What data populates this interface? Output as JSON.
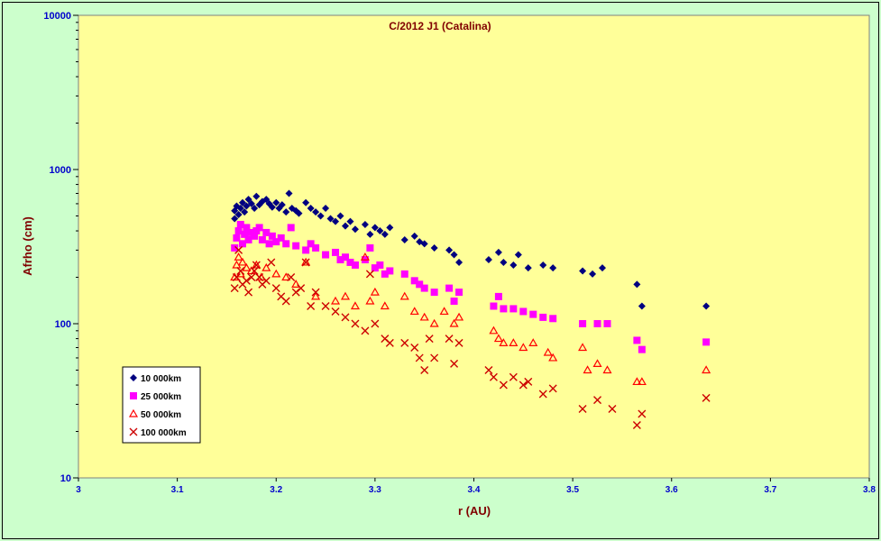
{
  "chart_data": {
    "type": "scatter",
    "title": "C/2012 J1 (Catalina)",
    "xlabel": "r (AU)",
    "ylabel": "Afrho (cm)",
    "xlim": [
      3,
      3.8
    ],
    "ylim": [
      10,
      10000
    ],
    "y_scale": "log",
    "x_ticks": [
      "3",
      "3.1",
      "3.2",
      "3.3",
      "3.4",
      "3.5",
      "3.6",
      "3.7",
      "3.8"
    ],
    "y_ticks": [
      "10",
      "100",
      "1000",
      "10000"
    ],
    "grid": false,
    "legend_position": "bottom-left",
    "plot_background": "#ffff99",
    "chart_background": "#ccffcc",
    "series": [
      {
        "name": "10 000km",
        "marker": "diamond",
        "color": "#000080",
        "points": [
          [
            3.158,
            480
          ],
          [
            3.158,
            540
          ],
          [
            3.16,
            580
          ],
          [
            3.162,
            510
          ],
          [
            3.164,
            560
          ],
          [
            3.166,
            610
          ],
          [
            3.168,
            530
          ],
          [
            3.17,
            580
          ],
          [
            3.172,
            640
          ],
          [
            3.175,
            600
          ],
          [
            3.178,
            560
          ],
          [
            3.18,
            670
          ],
          [
            3.183,
            590
          ],
          [
            3.186,
            620
          ],
          [
            3.19,
            640
          ],
          [
            3.193,
            600
          ],
          [
            3.196,
            570
          ],
          [
            3.2,
            610
          ],
          [
            3.203,
            560
          ],
          [
            3.206,
            590
          ],
          [
            3.21,
            530
          ],
          [
            3.213,
            700
          ],
          [
            3.216,
            560
          ],
          [
            3.22,
            540
          ],
          [
            3.223,
            520
          ],
          [
            3.23,
            610
          ],
          [
            3.235,
            560
          ],
          [
            3.24,
            530
          ],
          [
            3.245,
            500
          ],
          [
            3.25,
            560
          ],
          [
            3.255,
            480
          ],
          [
            3.26,
            460
          ],
          [
            3.265,
            500
          ],
          [
            3.27,
            430
          ],
          [
            3.275,
            460
          ],
          [
            3.28,
            410
          ],
          [
            3.29,
            440
          ],
          [
            3.295,
            380
          ],
          [
            3.3,
            420
          ],
          [
            3.305,
            400
          ],
          [
            3.31,
            380
          ],
          [
            3.315,
            420
          ],
          [
            3.33,
            350
          ],
          [
            3.34,
            370
          ],
          [
            3.345,
            340
          ],
          [
            3.35,
            330
          ],
          [
            3.36,
            310
          ],
          [
            3.375,
            300
          ],
          [
            3.38,
            280
          ],
          [
            3.385,
            250
          ],
          [
            3.415,
            260
          ],
          [
            3.425,
            290
          ],
          [
            3.43,
            250
          ],
          [
            3.44,
            240
          ],
          [
            3.445,
            280
          ],
          [
            3.455,
            230
          ],
          [
            3.47,
            240
          ],
          [
            3.48,
            230
          ],
          [
            3.51,
            220
          ],
          [
            3.52,
            210
          ],
          [
            3.53,
            230
          ],
          [
            3.565,
            180
          ],
          [
            3.57,
            130
          ],
          [
            3.635,
            130
          ]
        ]
      },
      {
        "name": "25 000km",
        "marker": "square",
        "color": "#ff00ff",
        "points": [
          [
            3.158,
            310
          ],
          [
            3.16,
            360
          ],
          [
            3.162,
            400
          ],
          [
            3.164,
            440
          ],
          [
            3.166,
            330
          ],
          [
            3.168,
            380
          ],
          [
            3.17,
            420
          ],
          [
            3.172,
            350
          ],
          [
            3.175,
            390
          ],
          [
            3.178,
            370
          ],
          [
            3.18,
            400
          ],
          [
            3.183,
            420
          ],
          [
            3.186,
            350
          ],
          [
            3.19,
            390
          ],
          [
            3.193,
            330
          ],
          [
            3.196,
            370
          ],
          [
            3.2,
            340
          ],
          [
            3.205,
            360
          ],
          [
            3.21,
            330
          ],
          [
            3.215,
            420
          ],
          [
            3.22,
            320
          ],
          [
            3.23,
            300
          ],
          [
            3.235,
            330
          ],
          [
            3.24,
            310
          ],
          [
            3.25,
            280
          ],
          [
            3.26,
            290
          ],
          [
            3.265,
            260
          ],
          [
            3.27,
            270
          ],
          [
            3.275,
            250
          ],
          [
            3.28,
            240
          ],
          [
            3.29,
            260
          ],
          [
            3.295,
            310
          ],
          [
            3.3,
            230
          ],
          [
            3.305,
            240
          ],
          [
            3.31,
            210
          ],
          [
            3.315,
            220
          ],
          [
            3.33,
            210
          ],
          [
            3.34,
            190
          ],
          [
            3.345,
            180
          ],
          [
            3.35,
            170
          ],
          [
            3.36,
            160
          ],
          [
            3.375,
            170
          ],
          [
            3.38,
            140
          ],
          [
            3.385,
            160
          ],
          [
            3.42,
            130
          ],
          [
            3.425,
            150
          ],
          [
            3.43,
            125
          ],
          [
            3.44,
            125
          ],
          [
            3.45,
            120
          ],
          [
            3.46,
            115
          ],
          [
            3.47,
            110
          ],
          [
            3.48,
            108
          ],
          [
            3.51,
            100
          ],
          [
            3.525,
            100
          ],
          [
            3.535,
            100
          ],
          [
            3.565,
            78
          ],
          [
            3.57,
            68
          ],
          [
            3.635,
            76
          ]
        ]
      },
      {
        "name": "50 000km",
        "marker": "triangle",
        "color": "#ff0000",
        "points": [
          [
            3.158,
            200
          ],
          [
            3.16,
            240
          ],
          [
            3.162,
            270
          ],
          [
            3.164,
            210
          ],
          [
            3.166,
            250
          ],
          [
            3.17,
            230
          ],
          [
            3.175,
            220
          ],
          [
            3.18,
            240
          ],
          [
            3.185,
            200
          ],
          [
            3.19,
            230
          ],
          [
            3.2,
            210
          ],
          [
            3.21,
            200
          ],
          [
            3.22,
            180
          ],
          [
            3.23,
            250
          ],
          [
            3.24,
            150
          ],
          [
            3.26,
            140
          ],
          [
            3.27,
            150
          ],
          [
            3.28,
            130
          ],
          [
            3.29,
            270
          ],
          [
            3.295,
            140
          ],
          [
            3.3,
            160
          ],
          [
            3.31,
            130
          ],
          [
            3.33,
            150
          ],
          [
            3.34,
            120
          ],
          [
            3.35,
            110
          ],
          [
            3.36,
            100
          ],
          [
            3.37,
            120
          ],
          [
            3.38,
            100
          ],
          [
            3.385,
            110
          ],
          [
            3.42,
            90
          ],
          [
            3.425,
            80
          ],
          [
            3.43,
            75
          ],
          [
            3.44,
            75
          ],
          [
            3.45,
            70
          ],
          [
            3.46,
            75
          ],
          [
            3.475,
            65
          ],
          [
            3.48,
            60
          ],
          [
            3.51,
            70
          ],
          [
            3.515,
            50
          ],
          [
            3.525,
            55
          ],
          [
            3.535,
            50
          ],
          [
            3.565,
            42
          ],
          [
            3.57,
            42
          ],
          [
            3.635,
            50
          ]
        ]
      },
      {
        "name": "100 000km",
        "marker": "x",
        "color": "#cc0000",
        "points": [
          [
            3.158,
            170
          ],
          [
            3.16,
            200
          ],
          [
            3.162,
            300
          ],
          [
            3.164,
            220
          ],
          [
            3.166,
            180
          ],
          [
            3.17,
            190
          ],
          [
            3.172,
            160
          ],
          [
            3.175,
            200
          ],
          [
            3.178,
            220
          ],
          [
            3.18,
            240
          ],
          [
            3.183,
            200
          ],
          [
            3.186,
            180
          ],
          [
            3.19,
            190
          ],
          [
            3.195,
            250
          ],
          [
            3.2,
            170
          ],
          [
            3.205,
            150
          ],
          [
            3.21,
            140
          ],
          [
            3.215,
            200
          ],
          [
            3.22,
            160
          ],
          [
            3.225,
            170
          ],
          [
            3.23,
            250
          ],
          [
            3.235,
            130
          ],
          [
            3.24,
            160
          ],
          [
            3.25,
            130
          ],
          [
            3.26,
            120
          ],
          [
            3.27,
            110
          ],
          [
            3.28,
            100
          ],
          [
            3.29,
            90
          ],
          [
            3.295,
            210
          ],
          [
            3.3,
            100
          ],
          [
            3.31,
            80
          ],
          [
            3.315,
            75
          ],
          [
            3.33,
            75
          ],
          [
            3.34,
            70
          ],
          [
            3.345,
            60
          ],
          [
            3.35,
            50
          ],
          [
            3.355,
            80
          ],
          [
            3.36,
            60
          ],
          [
            3.375,
            80
          ],
          [
            3.38,
            55
          ],
          [
            3.385,
            75
          ],
          [
            3.415,
            50
          ],
          [
            3.42,
            45
          ],
          [
            3.43,
            40
          ],
          [
            3.44,
            45
          ],
          [
            3.45,
            40
          ],
          [
            3.455,
            42
          ],
          [
            3.47,
            35
          ],
          [
            3.48,
            38
          ],
          [
            3.51,
            28
          ],
          [
            3.525,
            32
          ],
          [
            3.54,
            28
          ],
          [
            3.565,
            22
          ],
          [
            3.57,
            26
          ],
          [
            3.635,
            33
          ]
        ]
      }
    ]
  }
}
